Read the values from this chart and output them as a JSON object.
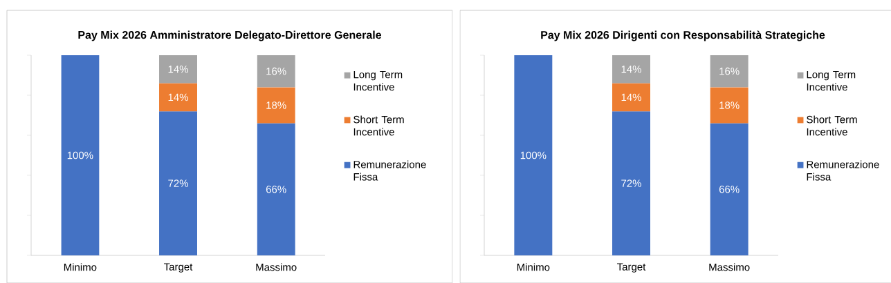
{
  "chart_data": [
    {
      "type": "bar",
      "stacked": true,
      "title": "Pay Mix 2026 Amministratore Delegato-Direttore Generale",
      "categories": [
        "Minimo",
        "Target",
        "Massimo"
      ],
      "series": [
        {
          "name": "Remunerazione Fissa",
          "color": "#4472c4",
          "values": [
            100,
            72,
            66
          ],
          "value_labels": [
            "100%",
            "72%",
            "66%"
          ]
        },
        {
          "name": "Short Term Incentive",
          "color": "#ed7d31",
          "values": [
            null,
            14,
            18
          ],
          "value_labels": [
            null,
            "14%",
            "18%"
          ]
        },
        {
          "name": "Long Term Incentive",
          "color": "#a5a5a5",
          "values": [
            null,
            14,
            16
          ],
          "value_labels": [
            null,
            "14%",
            "16%"
          ]
        }
      ],
      "ylim": [
        0,
        100
      ],
      "yticks": [
        {
          "value": 0,
          "label": null
        },
        {
          "value": 20,
          "label": null
        },
        {
          "value": 40,
          "label": null
        },
        {
          "value": 60,
          "label": null
        },
        {
          "value": 80,
          "label": null
        },
        {
          "value": 100,
          "label": null
        }
      ],
      "tick_labels": "x",
      "legend": "right"
    },
    {
      "type": "bar",
      "stacked": true,
      "title": "Pay Mix 2026 Dirigenti con Responsabilità Strategiche",
      "categories": [
        "Minimo",
        "Target",
        "Massimo"
      ],
      "series": [
        {
          "name": "Remunerazione Fissa",
          "color": "#4472c4",
          "values": [
            100,
            72,
            66
          ],
          "value_labels": [
            "100%",
            "72%",
            "66%"
          ]
        },
        {
          "name": "Short Term Incentive",
          "color": "#ed7d31",
          "values": [
            null,
            14,
            18
          ],
          "value_labels": [
            null,
            "14%",
            "18%"
          ]
        },
        {
          "name": "Long Term Incentive",
          "color": "#a5a5a5",
          "values": [
            null,
            14,
            16
          ],
          "value_labels": [
            null,
            "14%",
            "16%"
          ]
        }
      ],
      "ylim": [
        0,
        100
      ],
      "yticks": [
        {
          "value": 0,
          "label": null
        },
        {
          "value": 20,
          "label": null
        },
        {
          "value": 40,
          "label": null
        },
        {
          "value": 60,
          "label": null
        },
        {
          "value": 80,
          "label": null
        },
        {
          "value": 100,
          "label": null
        }
      ],
      "tick_labels": "x",
      "legend": "right"
    }
  ]
}
